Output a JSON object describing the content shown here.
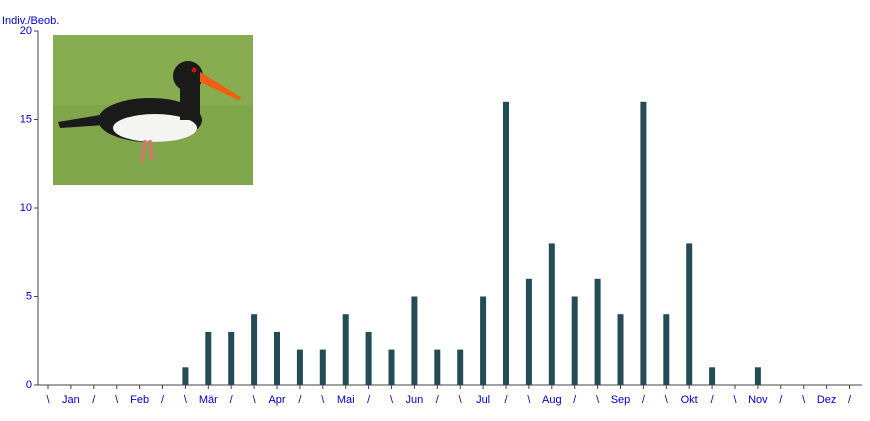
{
  "chart_data": {
    "type": "bar",
    "y_label": "Indiv./Beob.",
    "categories": [
      "\\",
      "Jan",
      "/",
      "\\",
      "Feb",
      "/",
      "\\",
      "Mär",
      "/",
      "\\",
      "Apr",
      "/",
      "\\",
      "Mai",
      "/",
      "\\",
      "Jun",
      "/",
      "\\",
      "Jul",
      "/",
      "\\",
      "Aug",
      "/",
      "\\",
      "Sep",
      "/",
      "\\",
      "Okt",
      "/",
      "\\",
      "Nov",
      "/",
      "\\",
      "Dez",
      "/"
    ],
    "values": [
      0,
      0,
      0,
      0,
      0,
      0,
      1,
      3,
      3,
      4,
      3,
      2,
      2,
      4,
      3,
      2,
      5,
      2,
      2,
      5,
      16,
      6,
      8,
      5,
      6,
      4,
      16,
      4,
      8,
      1,
      0,
      1,
      0,
      0,
      0,
      0
    ],
    "color": "#244c54",
    "ylim": [
      0,
      20
    ],
    "yticks": [
      0,
      5,
      10,
      15,
      20
    ],
    "grid": false
  }
}
